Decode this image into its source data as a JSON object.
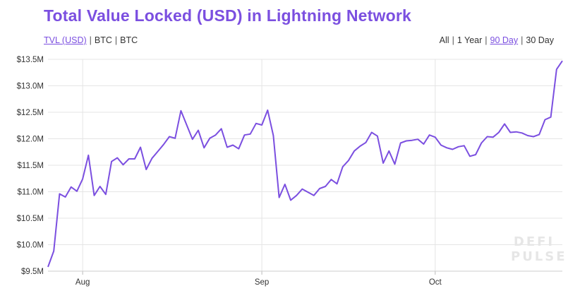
{
  "header": {
    "title": "Total Value Locked (USD) in Lightning Network"
  },
  "unit_toggles": [
    {
      "label": "TVL (USD)",
      "active": true
    },
    {
      "label": "BTC",
      "active": false
    },
    {
      "label": "BTC",
      "active": false
    }
  ],
  "range_toggles": [
    {
      "label": "All",
      "active": false
    },
    {
      "label": "1 Year",
      "active": false
    },
    {
      "label": "90 Day",
      "active": true
    },
    {
      "label": "30 Day",
      "active": false
    }
  ],
  "watermark": {
    "line1": "DEFI",
    "line2": "PULSE"
  },
  "colors": {
    "accent": "#7b4fe0",
    "line": "#7b4fe0",
    "grid": "#e5e5e5"
  },
  "chart_data": {
    "type": "line",
    "title": "Total Value Locked (USD) in Lightning Network",
    "xlabel": "",
    "ylabel": "",
    "ylim": [
      9.5,
      13.5
    ],
    "grid": true,
    "y_ticks": [
      {
        "value": 9.5,
        "label": "$9.5M"
      },
      {
        "value": 10.0,
        "label": "$10.0M"
      },
      {
        "value": 10.5,
        "label": "$10.5M"
      },
      {
        "value": 11.0,
        "label": "$11.0M"
      },
      {
        "value": 11.5,
        "label": "$11.5M"
      },
      {
        "value": 12.0,
        "label": "$12.0M"
      },
      {
        "value": 12.5,
        "label": "$12.5M"
      },
      {
        "value": 13.0,
        "label": "$13.0M"
      },
      {
        "value": 13.5,
        "label": "$13.5M"
      }
    ],
    "x_ticks": [
      {
        "label": "Aug",
        "index": 6
      },
      {
        "label": "Sep",
        "index": 37
      },
      {
        "label": "Oct",
        "index": 67
      }
    ],
    "series": [
      {
        "values": [
          9.58,
          9.88,
          10.96,
          10.9,
          11.09,
          11.01,
          11.24,
          11.69,
          10.93,
          11.1,
          10.95,
          11.57,
          11.64,
          11.51,
          11.62,
          11.62,
          11.84,
          11.42,
          11.63,
          11.76,
          11.89,
          12.04,
          12.01,
          12.53,
          12.26,
          11.99,
          12.16,
          11.83,
          12.01,
          12.07,
          12.19,
          11.84,
          11.88,
          11.81,
          12.07,
          12.09,
          12.29,
          12.26,
          12.54,
          12.06,
          10.89,
          11.14,
          10.84,
          10.93,
          11.05,
          10.99,
          10.93,
          11.06,
          11.1,
          11.23,
          11.15,
          11.47,
          11.59,
          11.77,
          11.86,
          11.93,
          12.12,
          12.05,
          11.54,
          11.77,
          11.52,
          11.92,
          11.96,
          11.97,
          11.99,
          11.9,
          12.07,
          12.03,
          11.88,
          11.83,
          11.8,
          11.85,
          11.87,
          11.67,
          11.7,
          11.92,
          12.04,
          12.03,
          12.12,
          12.28,
          12.12,
          12.13,
          12.11,
          12.06,
          12.04,
          12.08,
          12.36,
          12.41,
          13.31,
          13.47
        ]
      }
    ]
  }
}
